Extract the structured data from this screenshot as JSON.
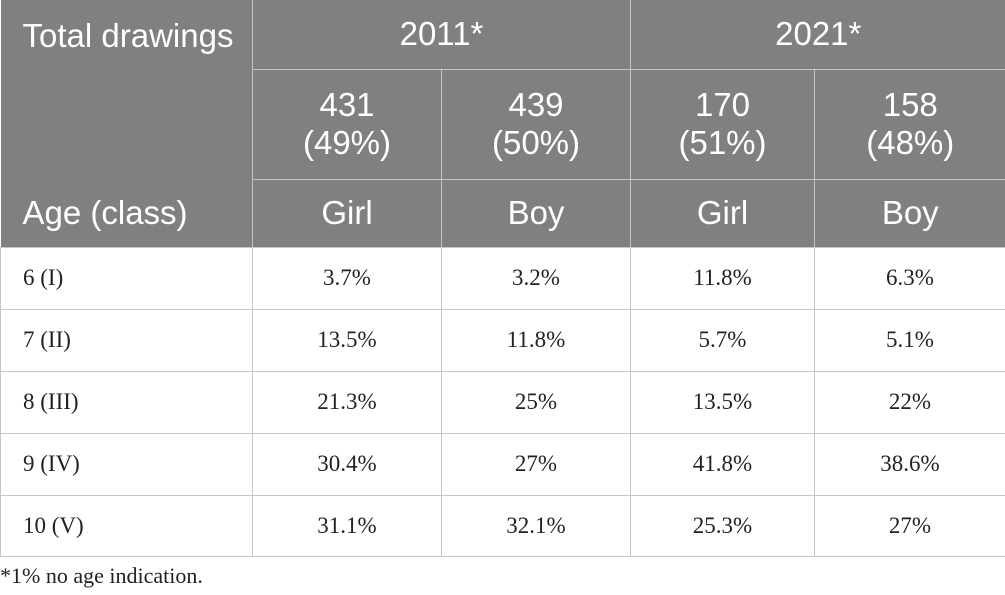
{
  "header": {
    "total_label": "Total drawings",
    "age_label": "Age (class)",
    "years": [
      "2011*",
      "2021*"
    ],
    "totals": [
      {
        "count": "431",
        "pct": "(49%)"
      },
      {
        "count": "439",
        "pct": "(50%)"
      },
      {
        "count": "170",
        "pct": "(51%)"
      },
      {
        "count": "158",
        "pct": "(48%)"
      }
    ],
    "genders": [
      "Girl",
      "Boy",
      "Girl",
      "Boy"
    ]
  },
  "rows": [
    {
      "age": "6 (I)",
      "values": [
        "3.7%",
        "3.2%",
        "11.8%",
        "6.3%"
      ]
    },
    {
      "age": "7 (II)",
      "values": [
        "13.5%",
        "11.8%",
        "5.7%",
        "5.1%"
      ]
    },
    {
      "age": "8 (III)",
      "values": [
        "21.3%",
        "25%",
        "13.5%",
        "22%"
      ]
    },
    {
      "age": "9 (IV)",
      "values": [
        "30.4%",
        "27%",
        "41.8%",
        "38.6%"
      ]
    },
    {
      "age": "10 (V)",
      "values": [
        "31.1%",
        "32.1%",
        "25.3%",
        "27%"
      ]
    }
  ],
  "footnote": "*1% no age indication."
}
